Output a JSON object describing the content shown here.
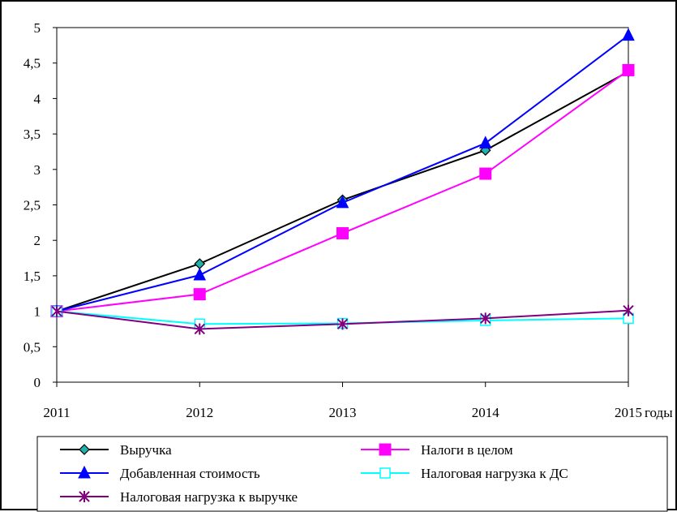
{
  "chart_data": {
    "type": "line",
    "categories": [
      "2011",
      "2012",
      "2013",
      "2014",
      "2015"
    ],
    "x_suffix_label": "годы",
    "y_ticks": [
      "0",
      "0,5",
      "1",
      "1,5",
      "2",
      "2,5",
      "3",
      "3,5",
      "4",
      "4,5",
      "5"
    ],
    "ylim": [
      0,
      5
    ],
    "grid": "none",
    "legend_position": "bottom",
    "series": [
      {
        "name": "Выручка",
        "values": [
          1.0,
          1.67,
          2.57,
          3.27,
          4.38
        ],
        "color": "#000000",
        "marker": "diamond"
      },
      {
        "name": "Налоги в целом",
        "values": [
          1.0,
          1.24,
          2.1,
          2.94,
          4.4
        ],
        "color": "#ff00ff",
        "marker": "square"
      },
      {
        "name": "Добавленная стоимость",
        "values": [
          1.0,
          1.51,
          2.53,
          3.37,
          4.89
        ],
        "color": "#0000ff",
        "marker": "triangle"
      },
      {
        "name": "Налоговая нагрузка к ДС",
        "values": [
          1.0,
          0.82,
          0.83,
          0.87,
          0.9
        ],
        "color": "#00ffff",
        "marker": "open-square"
      },
      {
        "name": "Налоговая нагрузка к выручке",
        "values": [
          1.0,
          0.75,
          0.82,
          0.9,
          1.01
        ],
        "color": "#800080",
        "marker": "star"
      }
    ]
  }
}
